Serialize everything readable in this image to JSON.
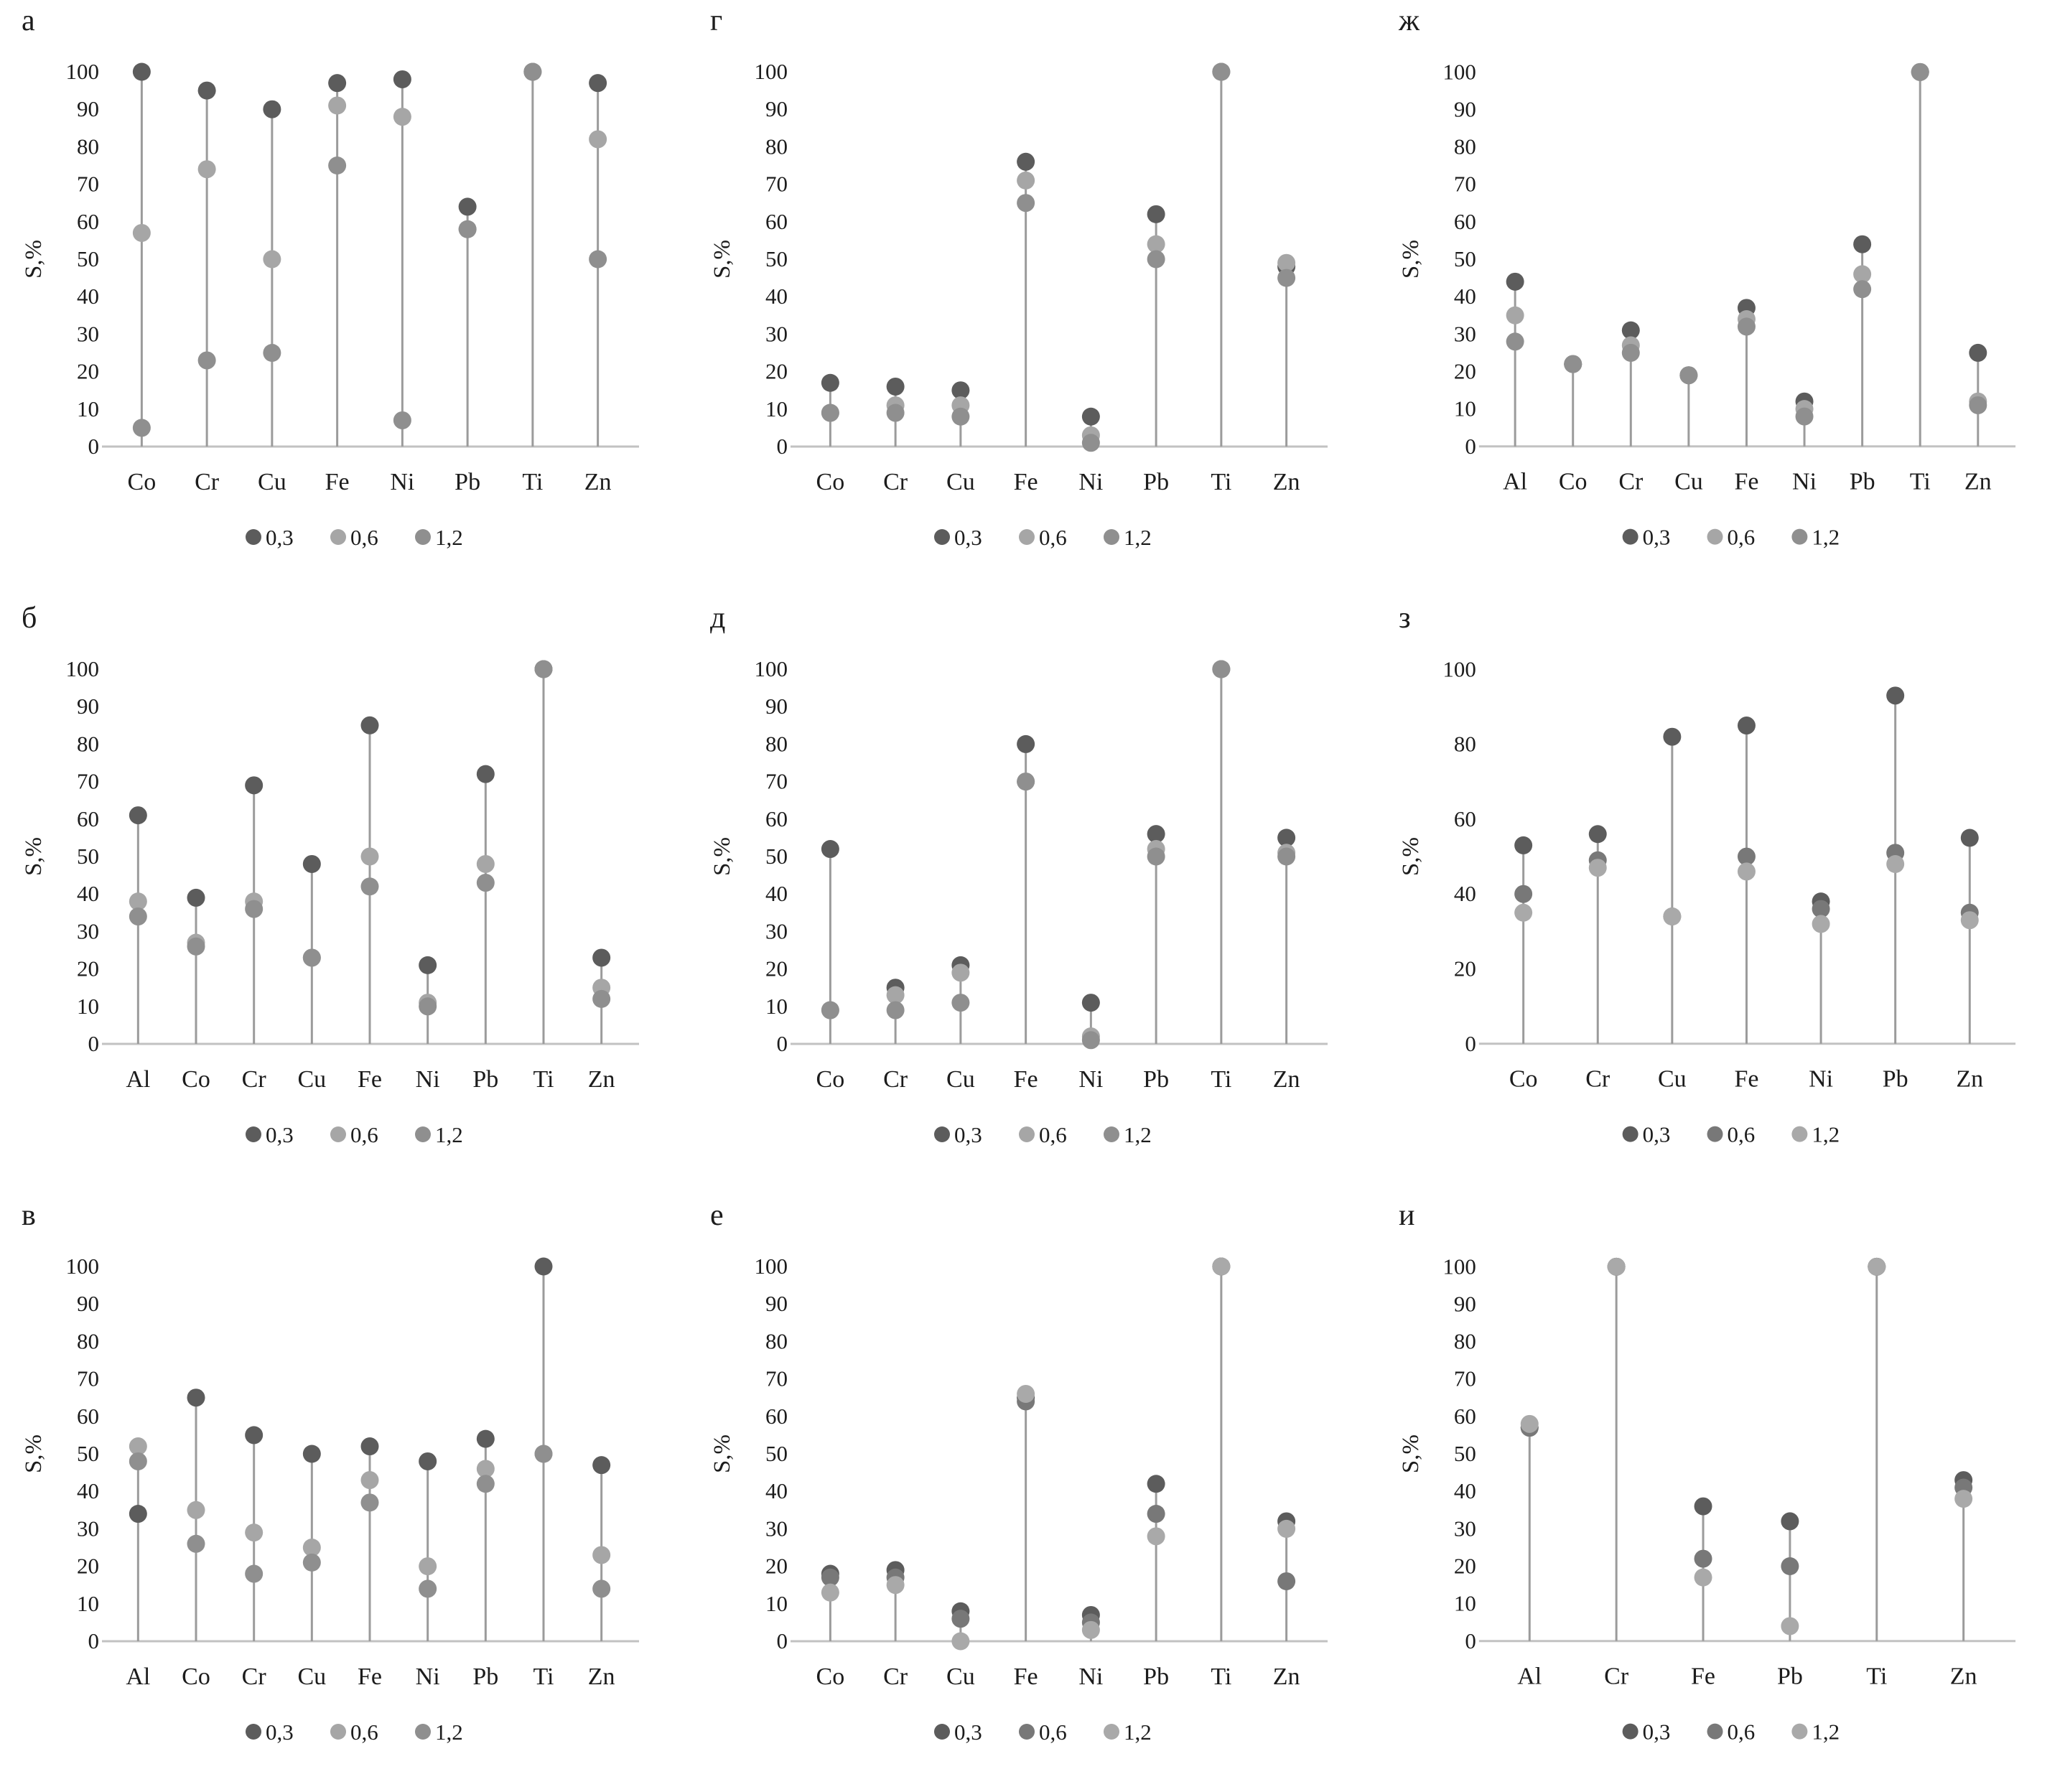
{
  "figure": {
    "ylabel": "S,%",
    "legend_labels": [
      "0,3",
      "0,6",
      "1,2"
    ]
  },
  "chart_data": [
    {
      "panel_label": "а",
      "type": "scatter",
      "ylabel": "S,%",
      "ylim": [
        0,
        100
      ],
      "ytick_step": 10,
      "legend_position": "bottom",
      "categories": [
        "Co",
        "Cr",
        "Cu",
        "Fe",
        "Ni",
        "Pb",
        "Ti",
        "Zn"
      ],
      "series": [
        {
          "name": "0,3",
          "color": "#5c5c5c",
          "values": [
            100,
            95,
            90,
            97,
            98,
            64,
            100,
            97
          ]
        },
        {
          "name": "0,6",
          "color": "#a6a6a6",
          "values": [
            57,
            74,
            50,
            91,
            88,
            58,
            100,
            82
          ]
        },
        {
          "name": "1,2",
          "color": "#8f8f8f",
          "values": [
            5,
            23,
            25,
            75,
            7,
            58,
            100,
            50
          ]
        }
      ]
    },
    {
      "panel_label": "г",
      "type": "scatter",
      "ylabel": "S,%",
      "ylim": [
        0,
        100
      ],
      "ytick_step": 10,
      "legend_position": "bottom",
      "categories": [
        "Co",
        "Cr",
        "Cu",
        "Fe",
        "Ni",
        "Pb",
        "Ti",
        "Zn"
      ],
      "series": [
        {
          "name": "0,3",
          "color": "#5c5c5c",
          "values": [
            17,
            16,
            15,
            76,
            8,
            62,
            100,
            48
          ]
        },
        {
          "name": "0,6",
          "color": "#a6a6a6",
          "values": [
            9,
            11,
            11,
            71,
            3,
            54,
            100,
            49
          ]
        },
        {
          "name": "1,2",
          "color": "#8f8f8f",
          "values": [
            9,
            9,
            8,
            65,
            1,
            50,
            100,
            45
          ]
        }
      ]
    },
    {
      "panel_label": "ж",
      "type": "scatter",
      "ylabel": "S,%",
      "ylim": [
        0,
        100
      ],
      "ytick_step": 10,
      "legend_position": "bottom",
      "categories": [
        "Al",
        "Co",
        "Cr",
        "Cu",
        "Fe",
        "Ni",
        "Pb",
        "Ti",
        "Zn"
      ],
      "series": [
        {
          "name": "0,3",
          "color": "#5c5c5c",
          "values": [
            44,
            22,
            31,
            19,
            37,
            12,
            54,
            100,
            25
          ]
        },
        {
          "name": "0,6",
          "color": "#a6a6a6",
          "values": [
            35,
            22,
            27,
            19,
            34,
            10,
            46,
            100,
            12
          ]
        },
        {
          "name": "1,2",
          "color": "#8f8f8f",
          "values": [
            28,
            22,
            25,
            19,
            32,
            8,
            42,
            100,
            11
          ]
        }
      ]
    },
    {
      "panel_label": "б",
      "type": "scatter",
      "ylabel": "S,%",
      "ylim": [
        0,
        100
      ],
      "ytick_step": 10,
      "legend_position": "bottom",
      "categories": [
        "Al",
        "Co",
        "Cr",
        "Cu",
        "Fe",
        "Ni",
        "Pb",
        "Ti",
        "Zn"
      ],
      "series": [
        {
          "name": "0,3",
          "color": "#5c5c5c",
          "values": [
            61,
            39,
            69,
            48,
            85,
            21,
            72,
            100,
            23
          ]
        },
        {
          "name": "0,6",
          "color": "#a6a6a6",
          "values": [
            38,
            27,
            38,
            23,
            50,
            11,
            48,
            100,
            15
          ]
        },
        {
          "name": "1,2",
          "color": "#8f8f8f",
          "values": [
            34,
            26,
            36,
            23,
            42,
            10,
            43,
            100,
            12
          ]
        }
      ]
    },
    {
      "panel_label": "д",
      "type": "scatter",
      "ylabel": "S,%",
      "ylim": [
        0,
        100
      ],
      "ytick_step": 10,
      "legend_position": "bottom",
      "categories": [
        "Co",
        "Cr",
        "Cu",
        "Fe",
        "Ni",
        "Pb",
        "Ti",
        "Zn"
      ],
      "series": [
        {
          "name": "0,3",
          "color": "#5c5c5c",
          "values": [
            52,
            15,
            21,
            80,
            11,
            56,
            100,
            55
          ]
        },
        {
          "name": "0,6",
          "color": "#a6a6a6",
          "values": [
            9,
            13,
            19,
            70,
            2,
            52,
            100,
            51
          ]
        },
        {
          "name": "1,2",
          "color": "#8f8f8f",
          "values": [
            9,
            9,
            11,
            70,
            1,
            50,
            100,
            50
          ]
        }
      ]
    },
    {
      "panel_label": "з",
      "type": "scatter",
      "ylabel": "S,%",
      "ylim": [
        0,
        100
      ],
      "ytick_step": 20,
      "legend_position": "bottom",
      "categories": [
        "Co",
        "Cr",
        "Cu",
        "Fe",
        "Ni",
        "Pb",
        "Zn"
      ],
      "series": [
        {
          "name": "0,3",
          "color": "#5c5c5c",
          "values": [
            53,
            56,
            82,
            85,
            38,
            93,
            55
          ]
        },
        {
          "name": "0,6",
          "color": "#787878",
          "values": [
            40,
            49,
            34,
            50,
            36,
            51,
            35
          ]
        },
        {
          "name": "1,2",
          "color": "#a9a9a9",
          "values": [
            35,
            47,
            34,
            46,
            32,
            48,
            33
          ]
        }
      ]
    },
    {
      "panel_label": "в",
      "type": "scatter",
      "ylabel": "S,%",
      "ylim": [
        0,
        100
      ],
      "ytick_step": 10,
      "legend_position": "bottom",
      "categories": [
        "Al",
        "Co",
        "Cr",
        "Cu",
        "Fe",
        "Ni",
        "Pb",
        "Ti",
        "Zn"
      ],
      "series": [
        {
          "name": "0,3",
          "color": "#5c5c5c",
          "values": [
            34,
            65,
            55,
            50,
            52,
            48,
            54,
            100,
            47
          ]
        },
        {
          "name": "0,6",
          "color": "#a6a6a6",
          "values": [
            52,
            35,
            29,
            25,
            43,
            20,
            46,
            50,
            23
          ]
        },
        {
          "name": "1,2",
          "color": "#8f8f8f",
          "values": [
            48,
            26,
            18,
            21,
            37,
            14,
            42,
            50,
            14
          ]
        }
      ]
    },
    {
      "panel_label": "е",
      "type": "scatter",
      "ylabel": "S,%",
      "ylim": [
        0,
        100
      ],
      "ytick_step": 10,
      "legend_position": "bottom",
      "categories": [
        "Co",
        "Cr",
        "Cu",
        "Fe",
        "Ni",
        "Pb",
        "Ti",
        "Zn"
      ],
      "series": [
        {
          "name": "0,3",
          "color": "#5c5c5c",
          "values": [
            18,
            19,
            8,
            65,
            7,
            42,
            100,
            32
          ]
        },
        {
          "name": "0,6",
          "color": "#787878",
          "values": [
            17,
            17,
            6,
            64,
            5,
            34,
            100,
            16
          ]
        },
        {
          "name": "1,2",
          "color": "#a9a9a9",
          "values": [
            13,
            15,
            0,
            66,
            3,
            28,
            100,
            30
          ]
        }
      ]
    },
    {
      "panel_label": "и",
      "type": "scatter",
      "ylabel": "S,%",
      "ylim": [
        0,
        100
      ],
      "ytick_step": 10,
      "legend_position": "bottom",
      "categories": [
        "Al",
        "Cr",
        "Fe",
        "Pb",
        "Ti",
        "Zn"
      ],
      "series": [
        {
          "name": "0,3",
          "color": "#5c5c5c",
          "values": [
            57,
            100,
            36,
            32,
            100,
            43
          ]
        },
        {
          "name": "0,6",
          "color": "#787878",
          "values": [
            57,
            100,
            22,
            20,
            100,
            41
          ]
        },
        {
          "name": "1,2",
          "color": "#a9a9a9",
          "values": [
            58,
            100,
            17,
            4,
            100,
            38
          ]
        }
      ]
    }
  ]
}
